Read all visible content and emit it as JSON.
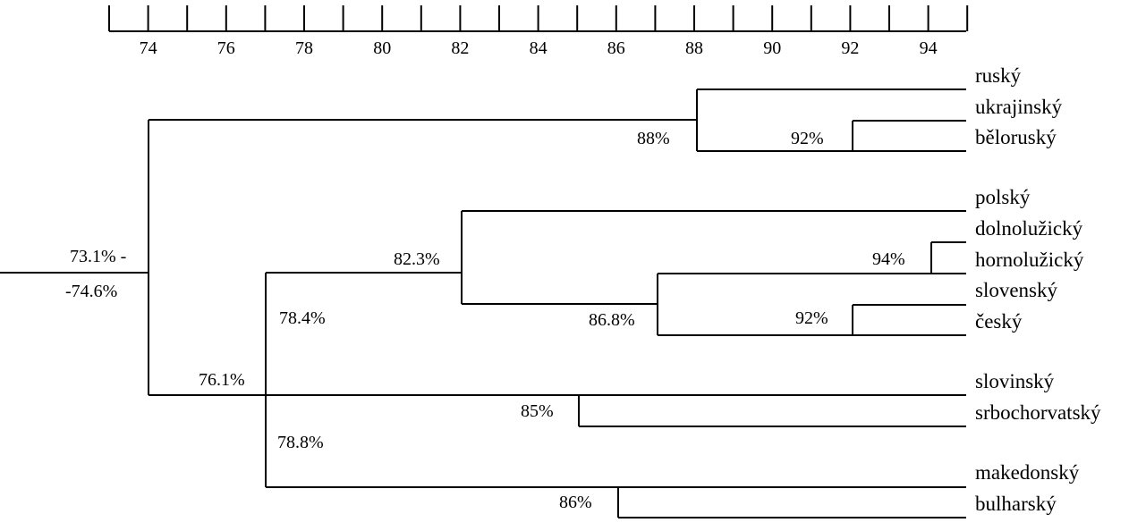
{
  "scale": {
    "ticks": [
      73,
      74,
      75,
      76,
      77,
      78,
      79,
      80,
      81,
      82,
      83,
      84,
      85,
      86,
      87,
      88,
      89,
      90,
      91,
      92,
      93,
      94,
      95
    ],
    "labels": [
      "74",
      "76",
      "78",
      "80",
      "82",
      "84",
      "86",
      "88",
      "90",
      "92",
      "94"
    ]
  },
  "languages": [
    "ruský",
    "ukrajinský",
    "běloruský",
    "polský",
    "dolnolužický",
    "hornolužický",
    "slovenský",
    "český",
    "slovinský",
    "srbochorvatský",
    "makedonský",
    "bulharský"
  ],
  "nodes": {
    "root_line1": "73.1% -",
    "root_line2": "-74.6%",
    "east": "88%",
    "east_pair": "92%",
    "west_south": "76.1%",
    "west": "82.3%",
    "west_group": "78.4%",
    "sorbian": "94%",
    "czechoslovak": "86.8%",
    "cz_sk": "92%",
    "south": "78.8%",
    "sl_sh": "85%",
    "mk_bg": "86%"
  }
}
